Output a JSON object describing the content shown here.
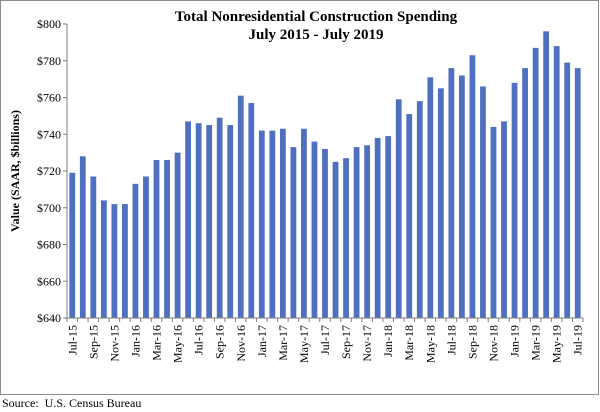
{
  "chart_data": {
    "type": "bar",
    "title": [
      "Total Nonresidential Construction Spending",
      "July 2015 - July 2019"
    ],
    "ylabel": "Value (SAAR, $billions)",
    "xlabel": "",
    "ylim": [
      640,
      800
    ],
    "yticks": [
      640,
      660,
      680,
      700,
      720,
      740,
      760,
      780,
      800
    ],
    "ytick_labels": [
      "$640",
      "$660",
      "$680",
      "$700",
      "$720",
      "$740",
      "$760",
      "$780",
      "$800"
    ],
    "categories": [
      "Jul-15",
      "Aug-15",
      "Sep-15",
      "Oct-15",
      "Nov-15",
      "Dec-15",
      "Jan-16",
      "Feb-16",
      "Mar-16",
      "Apr-16",
      "May-16",
      "Jun-16",
      "Jul-16",
      "Aug-16",
      "Sep-16",
      "Oct-16",
      "Nov-16",
      "Dec-16",
      "Jan-17",
      "Feb-17",
      "Mar-17",
      "Apr-17",
      "May-17",
      "Jun-17",
      "Jul-17",
      "Aug-17",
      "Sep-17",
      "Oct-17",
      "Nov-17",
      "Dec-17",
      "Jan-18",
      "Feb-18",
      "Mar-18",
      "Apr-18",
      "May-18",
      "Jun-18",
      "Jul-18",
      "Aug-18",
      "Sep-18",
      "Oct-18",
      "Nov-18",
      "Dec-18",
      "Jan-19",
      "Feb-19",
      "Mar-19",
      "Apr-19",
      "May-19",
      "Jun-19",
      "Jul-19"
    ],
    "xtick_labels": [
      "Jul-15",
      "Sep-15",
      "Nov-15",
      "Jan-16",
      "Mar-16",
      "May-16",
      "Jul-16",
      "Sep-16",
      "Nov-16",
      "Jan-17",
      "Mar-17",
      "May-17",
      "Jul-17",
      "Sep-17",
      "Nov-17",
      "Jan-18",
      "Mar-18",
      "May-18",
      "Jul-18",
      "Sep-18",
      "Nov-18",
      "Jan-19",
      "Mar-19",
      "May-19",
      "Jul-19"
    ],
    "values": [
      719,
      728,
      717,
      704,
      702,
      702,
      713,
      717,
      726,
      726,
      730,
      747,
      746,
      745,
      749,
      745,
      761,
      757,
      742,
      742,
      743,
      733,
      743,
      736,
      732,
      725,
      727,
      733,
      734,
      738,
      739,
      759,
      751,
      758,
      771,
      765,
      776,
      772,
      783,
      766,
      744,
      747,
      768,
      776,
      787,
      796,
      788,
      779,
      776
    ],
    "bar_color": "#4f6fbf",
    "grid": false,
    "legend": "none"
  },
  "source": "Source:  U.S. Census Bureau"
}
